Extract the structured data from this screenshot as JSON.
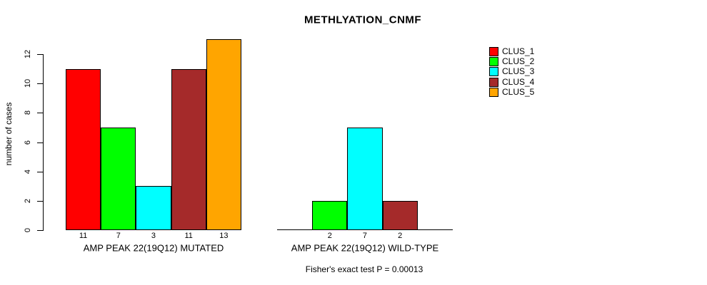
{
  "title": "METHLYATION_CNMF",
  "footer": {
    "fisher_text": "Fisher's exact test P = 0.00013"
  },
  "chart_data": {
    "type": "bar",
    "title": "METHLYATION_CNMF",
    "xlabel": "",
    "ylabel": "number of cases",
    "ylim": [
      0,
      12
    ],
    "yticks": [
      0,
      2,
      4,
      6,
      8,
      10,
      12
    ],
    "grid": false,
    "legend_position": "right",
    "categories": [
      "AMP PEAK 22(19Q12) MUTATED",
      "AMP PEAK 22(19Q12) WILD-TYPE"
    ],
    "series": [
      {
        "name": "CLUS_1",
        "color": "#FF0000",
        "values": [
          11,
          0
        ]
      },
      {
        "name": "CLUS_2",
        "color": "#00FF00",
        "values": [
          7,
          2
        ]
      },
      {
        "name": "CLUS_3",
        "color": "#00FFFF",
        "values": [
          3,
          7
        ]
      },
      {
        "name": "CLUS_4",
        "color": "#A52A2A",
        "values": [
          11,
          2
        ]
      },
      {
        "name": "CLUS_5",
        "color": "#FFA500",
        "values": [
          13,
          0
        ]
      }
    ],
    "bar_value_labels_shown_for_nonzero": true,
    "annotation": "Fisher's exact test P = 0.00013",
    "axis_color": "#000000",
    "text_color": "#000000"
  }
}
